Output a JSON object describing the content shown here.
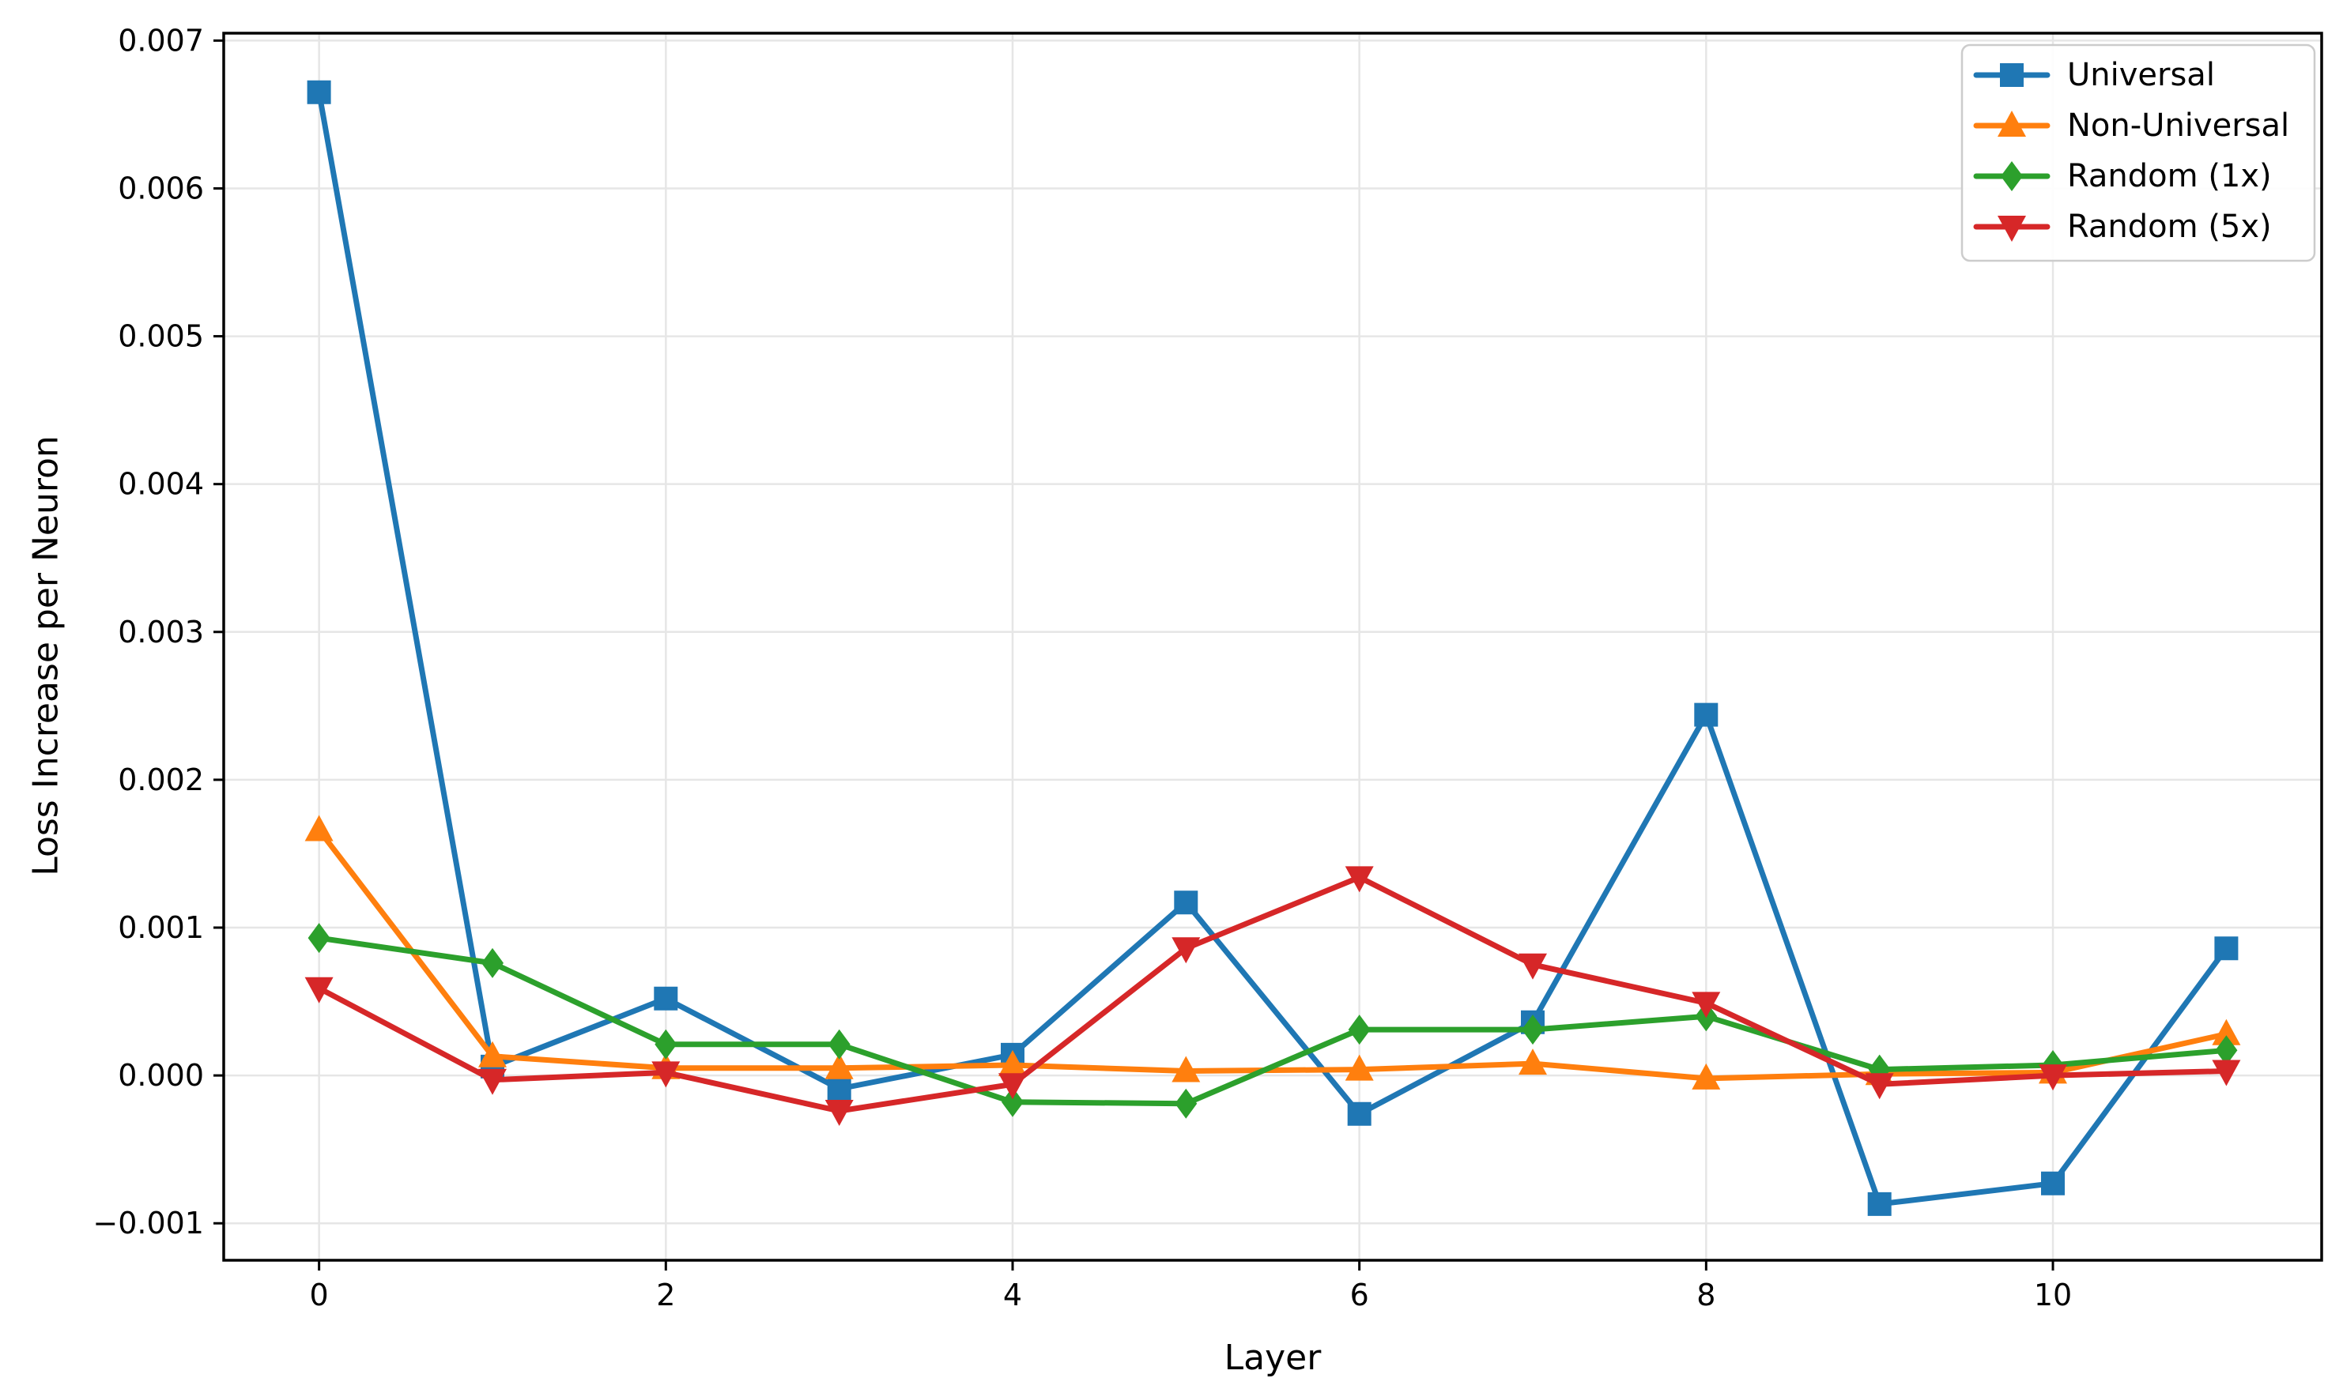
{
  "chart_data": {
    "type": "line",
    "title": "",
    "xlabel": "Layer",
    "ylabel": "Loss Increase per Neuron",
    "x": [
      0,
      1,
      2,
      3,
      4,
      5,
      6,
      7,
      8,
      9,
      10,
      11
    ],
    "xticks": [
      0,
      2,
      4,
      6,
      8,
      10
    ],
    "xtick_labels": [
      "0",
      "2",
      "4",
      "6",
      "8",
      "10"
    ],
    "yticks": [
      0.007,
      0.006,
      0.005,
      0.004,
      0.003,
      0.002,
      0.001,
      0.0,
      -0.001
    ],
    "ytick_labels": [
      "0.007",
      "0.006",
      "0.005",
      "0.004",
      "0.003",
      "0.002",
      "0.001",
      "0.000",
      "−0.001"
    ],
    "xlim": [
      -0.55,
      11.55
    ],
    "ylim": [
      -0.00125,
      0.00705
    ],
    "grid": true,
    "grid_color": "#e6e6e6",
    "background_color": "#ffffff",
    "spine_color": "#000000",
    "legend_position": "upper right",
    "series": [
      {
        "name": "Universal",
        "color": "#1f77b4",
        "marker": "square",
        "values": [
          0.00665,
          6e-05,
          0.00052,
          -9e-05,
          0.00014,
          0.00117,
          -0.00026,
          0.00036,
          0.00244,
          -0.00087,
          -0.00073,
          0.00086
        ]
      },
      {
        "name": "Non-Universal",
        "color": "#ff7f0e",
        "marker": "triangle-up",
        "values": [
          0.00166,
          0.00013,
          5e-05,
          5e-05,
          7e-05,
          3e-05,
          4e-05,
          8e-05,
          -2e-05,
          1e-05,
          2e-05,
          0.00028
        ]
      },
      {
        "name": "Random (1x)",
        "color": "#2ca02c",
        "marker": "diamond",
        "values": [
          0.00093,
          0.00076,
          0.00021,
          0.00021,
          -0.00018,
          -0.00019,
          0.00031,
          0.00031,
          0.0004,
          4e-05,
          7e-05,
          0.00017
        ]
      },
      {
        "name": "Random (5x)",
        "color": "#d62728",
        "marker": "triangle-down",
        "values": [
          0.00059,
          -3e-05,
          2e-05,
          -0.00024,
          -6e-05,
          0.00086,
          0.00134,
          0.00075,
          0.00049,
          -6e-05,
          0.0,
          3e-05
        ]
      }
    ]
  }
}
